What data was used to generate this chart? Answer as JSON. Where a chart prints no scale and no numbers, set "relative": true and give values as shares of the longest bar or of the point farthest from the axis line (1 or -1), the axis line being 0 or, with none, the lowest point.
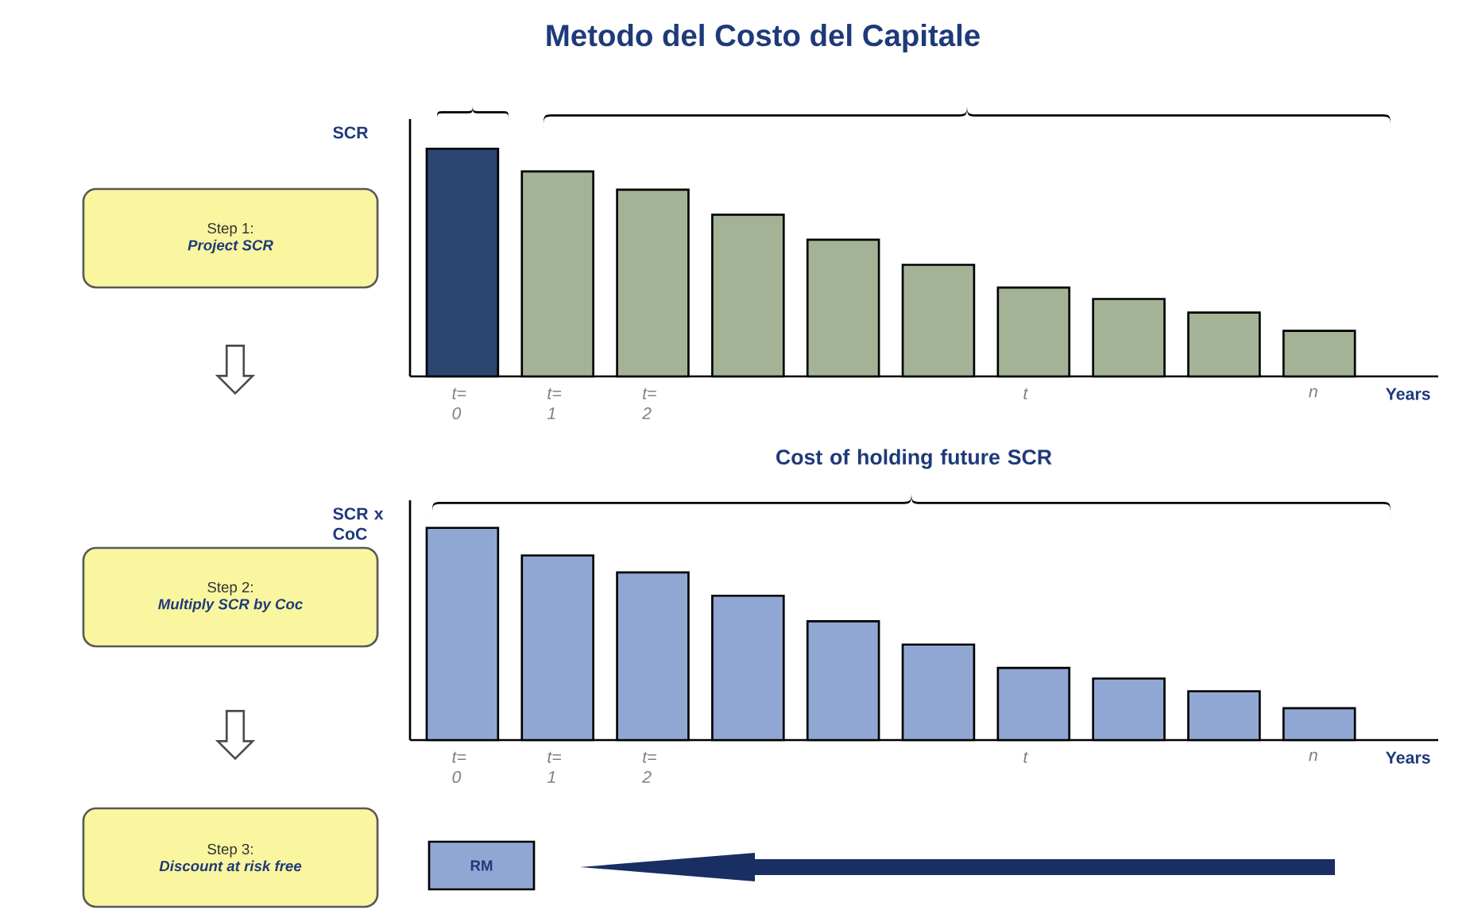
{
  "chart_data": [
    {
      "type": "bar",
      "title": "Metodo del Costo del Capitale",
      "relative": true,
      "ylabel": "SCR",
      "xlabel": "Years",
      "categories": [
        "t= 0",
        "t= 1",
        "t= 2",
        null,
        null,
        null,
        "t",
        null,
        null,
        "n"
      ],
      "values": [
        1,
        0.9,
        0.82,
        0.71,
        0.6,
        0.49,
        0.39,
        0.34,
        0.28,
        0.2
      ],
      "colors": [
        "#2c4570",
        "#a4b396",
        "#a4b396",
        "#a4b396",
        "#a4b396",
        "#a4b396",
        "#a4b396",
        "#a4b396",
        "#a4b396",
        "#a4b396"
      ],
      "annotations": [
        "Step 1:",
        "Project SCR"
      ]
    },
    {
      "type": "bar",
      "relative": true,
      "ylabel": "SCR x CoC",
      "xlabel": "Years",
      "categories": [
        "t= 0",
        "t= 1",
        "t= 2",
        null,
        null,
        null,
        "t",
        null,
        null,
        "n"
      ],
      "values": [
        1,
        0.87,
        0.79,
        0.68,
        0.56,
        0.45,
        0.34,
        0.29,
        0.23,
        0.15
      ],
      "color": "#91a7d3",
      "annotations": [
        "Cost of holding future SCR",
        "Step 2:",
        "Multiply SCR by Coc",
        "Step 3:",
        "Discount at risk free",
        "RM"
      ]
    }
  ]
}
